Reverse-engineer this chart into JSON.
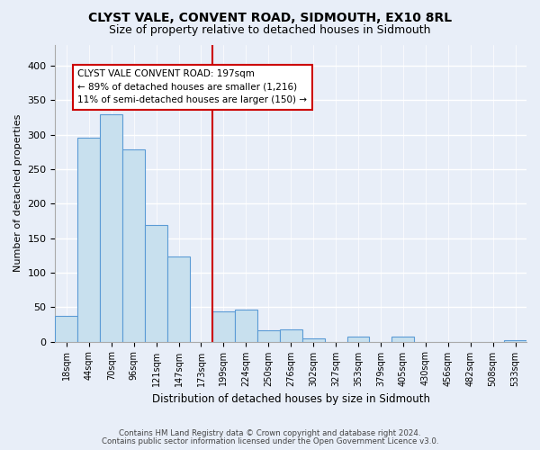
{
  "title": "CLYST VALE, CONVENT ROAD, SIDMOUTH, EX10 8RL",
  "subtitle": "Size of property relative to detached houses in Sidmouth",
  "xlabel": "Distribution of detached houses by size in Sidmouth",
  "ylabel": "Number of detached properties",
  "bin_labels": [
    "18sqm",
    "44sqm",
    "70sqm",
    "96sqm",
    "121sqm",
    "147sqm",
    "173sqm",
    "199sqm",
    "224sqm",
    "250sqm",
    "276sqm",
    "302sqm",
    "327sqm",
    "353sqm",
    "379sqm",
    "405sqm",
    "430sqm",
    "456sqm",
    "482sqm",
    "508sqm",
    "533sqm"
  ],
  "bar_heights": [
    37,
    296,
    329,
    279,
    169,
    124,
    0,
    44,
    46,
    17,
    18,
    5,
    0,
    7,
    0,
    7,
    0,
    0,
    0,
    0,
    2
  ],
  "bar_color": "#c8e0ee",
  "bar_edge_color": "#5b9bd5",
  "vline_color": "#cc0000",
  "annotation_title": "CLYST VALE CONVENT ROAD: 197sqm",
  "annotation_line1": "← 89% of detached houses are smaller (1,216)",
  "annotation_line2": "11% of semi-detached houses are larger (150) →",
  "annotation_box_color": "#ffffff",
  "annotation_box_edge_color": "#cc0000",
  "ylim": [
    0,
    430
  ],
  "yticks": [
    0,
    50,
    100,
    150,
    200,
    250,
    300,
    350,
    400
  ],
  "footnote1": "Contains HM Land Registry data © Crown copyright and database right 2024.",
  "footnote2": "Contains public sector information licensed under the Open Government Licence v3.0.",
  "bg_color": "#e8eef8",
  "plot_bg_color": "#e8eef8"
}
